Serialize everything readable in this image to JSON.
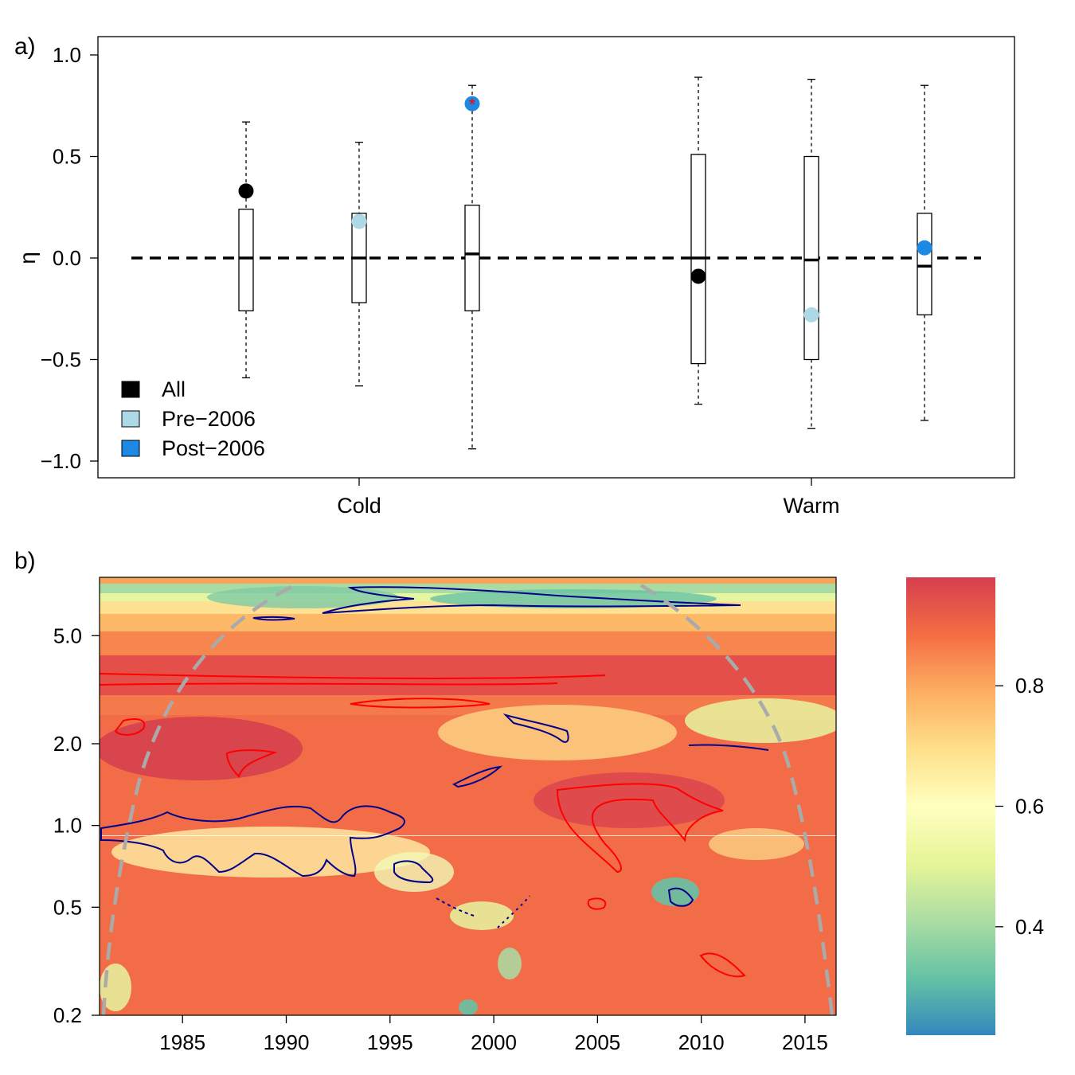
{
  "chart_data": [
    {
      "panel_label": "a)",
      "type": "box",
      "ylabel": "η",
      "ylim": [
        -1.08,
        1.08
      ],
      "yticks": [
        "−1.0",
        "−0.5",
        "0.0",
        "0.5",
        "1.0"
      ],
      "ytick_values": [
        -1.0,
        -0.5,
        0.0,
        0.5,
        1.0
      ],
      "xtick_labels": [
        "Cold",
        "Warm"
      ],
      "reference_line": 0.0,
      "legend": {
        "position": "bottom-left",
        "entries": [
          {
            "label": "All",
            "color": "#000000"
          },
          {
            "label": "Pre−2006",
            "color": "#add8e6"
          },
          {
            "label": "Post−2006",
            "color": "#1e88e5"
          }
        ]
      },
      "boxes": [
        {
          "group": "Cold",
          "subset": "All",
          "whisker_low": -0.59,
          "q1": -0.26,
          "median": 0.0,
          "q3": 0.24,
          "whisker_high": 0.67,
          "observed": 0.33,
          "color": "#000000",
          "significant": false
        },
        {
          "group": "Cold",
          "subset": "Pre−2006",
          "whisker_low": -0.63,
          "q1": -0.22,
          "median": 0.0,
          "q3": 0.22,
          "whisker_high": 0.57,
          "observed": 0.18,
          "color": "#add8e6",
          "significant": false
        },
        {
          "group": "Cold",
          "subset": "Post−2006",
          "whisker_low": -0.94,
          "q1": -0.26,
          "median": 0.02,
          "q3": 0.26,
          "whisker_high": 0.85,
          "observed": 0.76,
          "color": "#1e88e5",
          "significant": true
        },
        {
          "group": "Warm",
          "subset": "All",
          "whisker_low": -0.72,
          "q1": -0.52,
          "median": 0.0,
          "q3": 0.51,
          "whisker_high": 0.89,
          "observed": -0.09,
          "color": "#000000",
          "significant": false
        },
        {
          "group": "Warm",
          "subset": "Pre−2006",
          "whisker_low": -0.84,
          "q1": -0.5,
          "median": -0.01,
          "q3": 0.5,
          "whisker_high": 0.88,
          "observed": -0.28,
          "color": "#add8e6",
          "significant": false
        },
        {
          "group": "Warm",
          "subset": "Post−2006",
          "whisker_low": -0.8,
          "q1": -0.28,
          "median": -0.04,
          "q3": 0.22,
          "whisker_high": 0.85,
          "observed": 0.05,
          "color": "#1e88e5",
          "significant": false
        }
      ]
    },
    {
      "panel_label": "b)",
      "type": "heatmap",
      "x_range": [
        1981,
        2016.5
      ],
      "xticks": [
        "1985",
        "1990",
        "1995",
        "2000",
        "2005",
        "2010",
        "2015"
      ],
      "xtick_values": [
        1985,
        1990,
        1995,
        2000,
        2005,
        2010,
        2015
      ],
      "y_scale": "log",
      "y_range": [
        0.2,
        8.2
      ],
      "yticks": [
        "0.2",
        "0.5",
        "1.0",
        "2.0",
        "5.0"
      ],
      "ytick_values": [
        0.2,
        0.5,
        1.0,
        2.0,
        5.0
      ],
      "colorbar": {
        "range": [
          0.22,
          0.98
        ],
        "ticks": [
          "0.4",
          "0.6",
          "0.8"
        ],
        "tick_values": [
          0.4,
          0.6,
          0.8
        ],
        "palette": [
          "#3288bd",
          "#66c2a5",
          "#abdda4",
          "#e6f598",
          "#ffffbf",
          "#fee08b",
          "#fdae61",
          "#f46d43",
          "#d53e4f"
        ]
      },
      "contour_colors": {
        "high": "#ff0000",
        "low": "#00008b"
      },
      "cone_color": "#aaaaaa"
    }
  ]
}
